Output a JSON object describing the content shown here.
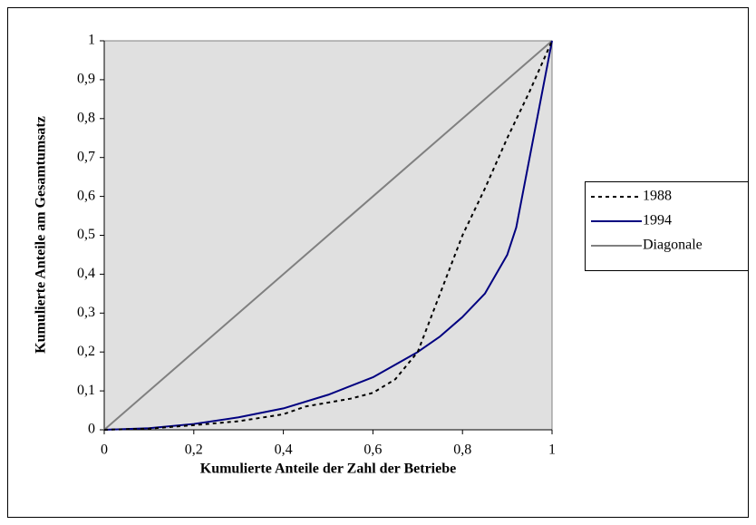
{
  "chart_data": {
    "type": "line",
    "xlabel": "Kumulierte Anteile der Zahl der Betriebe",
    "ylabel": "Kumulierte Anteile am Gesamtumsatz",
    "xlim": [
      0,
      1
    ],
    "ylim": [
      0,
      1
    ],
    "xticks": [
      0,
      {
        "value": 0.2,
        "label": "0,2"
      },
      {
        "value": 0.4,
        "label": "0,4"
      },
      {
        "value": 0.6,
        "label": "0,6"
      },
      {
        "value": 0.8,
        "label": "0,8"
      },
      1
    ],
    "yticks": [
      0,
      {
        "value": 0.1,
        "label": "0,1"
      },
      {
        "value": 0.2,
        "label": "0,2"
      },
      {
        "value": 0.3,
        "label": "0,3"
      },
      {
        "value": 0.4,
        "label": "0,4"
      },
      {
        "value": 0.5,
        "label": "0,5"
      },
      {
        "value": 0.6,
        "label": "0,6"
      },
      {
        "value": 0.7,
        "label": "0,7"
      },
      {
        "value": 0.8,
        "label": "0,8"
      },
      {
        "value": 0.9,
        "label": "0,9"
      },
      1
    ],
    "legend": "right",
    "plot_background": "#e0e0e0",
    "series": [
      {
        "name": "1988",
        "color": "#000000",
        "dashed": true,
        "x": [
          0,
          0.1,
          0.2,
          0.3,
          0.4,
          0.45,
          0.5,
          0.55,
          0.6,
          0.65,
          0.7,
          0.75,
          0.8,
          0.85,
          0.9,
          0.95,
          1
        ],
        "values": [
          0,
          0.003,
          0.012,
          0.022,
          0.04,
          0.06,
          0.07,
          0.08,
          0.095,
          0.13,
          0.2,
          0.35,
          0.5,
          0.62,
          0.75,
          0.87,
          1
        ]
      },
      {
        "name": "1994",
        "color": "#000080",
        "dashed": false,
        "x": [
          0,
          0.1,
          0.2,
          0.3,
          0.4,
          0.5,
          0.6,
          0.7,
          0.75,
          0.8,
          0.85,
          0.9,
          0.92,
          0.95,
          0.97,
          1
        ],
        "values": [
          0,
          0.004,
          0.015,
          0.032,
          0.055,
          0.09,
          0.135,
          0.2,
          0.24,
          0.29,
          0.35,
          0.45,
          0.52,
          0.7,
          0.82,
          1
        ]
      },
      {
        "name": "Diagonale",
        "color": "#808080",
        "dashed": false,
        "x": [
          0,
          1
        ],
        "values": [
          0,
          1
        ]
      }
    ]
  }
}
